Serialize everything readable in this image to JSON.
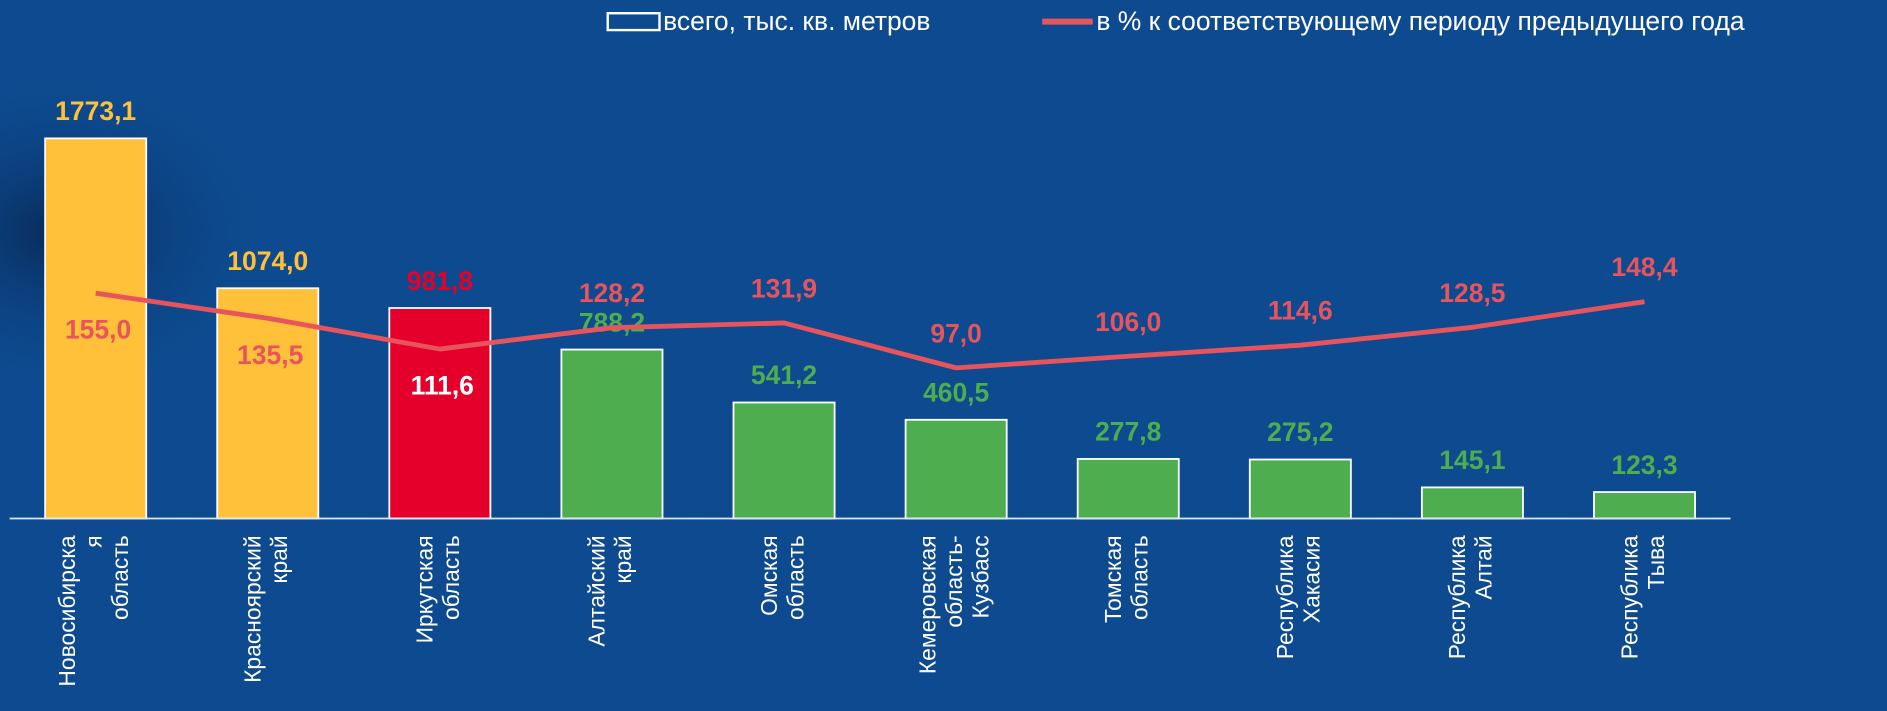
{
  "chart_data": {
    "type": "bar",
    "categories": [
      [
        "Новосибирска",
        "я",
        "область"
      ],
      [
        "Красноярский",
        "край"
      ],
      [
        "Иркутская",
        "область"
      ],
      [
        "Алтайский",
        "край"
      ],
      [
        "Омская",
        "область"
      ],
      [
        "Кемеровская",
        "область-",
        "Кузбасс"
      ],
      [
        "Томская",
        "область"
      ],
      [
        "Республика",
        "Хакасия"
      ],
      [
        "Республика",
        "Алтай"
      ],
      [
        "Республика",
        "Тыва"
      ]
    ],
    "series": [
      {
        "name": "всего, тыс. кв. метров",
        "type": "bar",
        "colors": [
          "#ffc03a",
          "#ffc03a",
          "#e4002b",
          "#4eae4f",
          "#4eae4f",
          "#4eae4f",
          "#4eae4f",
          "#4eae4f",
          "#4eae4f",
          "#4eae4f"
        ],
        "values": [
          1773.1,
          1074.0,
          981.8,
          788.2,
          541.2,
          460.5,
          277.8,
          275.2,
          145.1,
          123.3
        ],
        "value_labels": [
          "1773,1",
          "1074,0",
          "981,8",
          "788,2",
          "541,2",
          "460,5",
          "277,8",
          "275,2",
          "145,1",
          "123,3"
        ]
      },
      {
        "name": "в % к соответствующему периоду предыдущего года",
        "type": "line",
        "axis": "y2",
        "color": "#e8545c",
        "values": [
          155.0,
          135.5,
          111.6,
          128.2,
          131.9,
          97.0,
          106.0,
          114.6,
          128.5,
          148.4
        ],
        "value_labels": [
          "155,0",
          "135,5",
          "111,6",
          "128,2",
          "131,9",
          "97,0",
          "106,0",
          "114,6",
          "128,5",
          "148,4"
        ]
      }
    ],
    "ylim": [
      0,
      2000
    ],
    "y2lim": [
      -20,
      313
    ]
  }
}
